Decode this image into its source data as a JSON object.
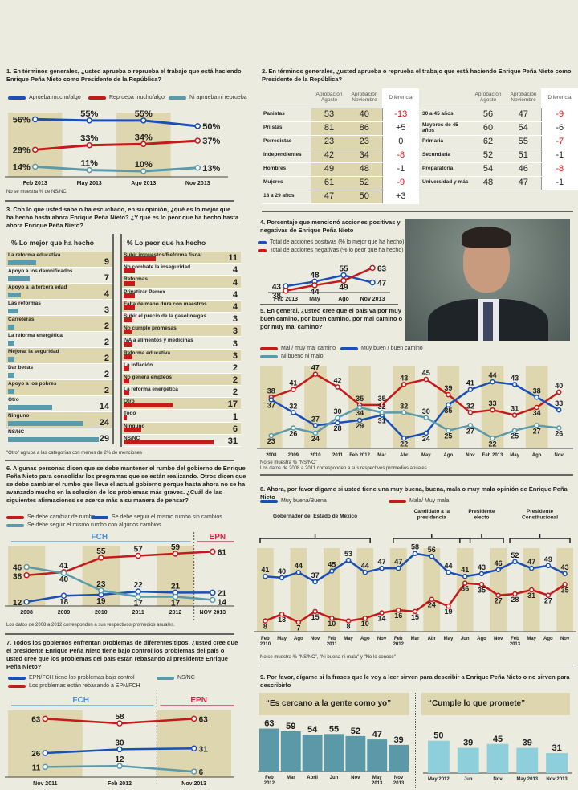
{
  "colors": {
    "blue": "#1a4fb5",
    "red": "#c41a1a",
    "teal": "#5b9aaa",
    "band": "#ddd6ae"
  },
  "q1": {
    "title": "1. En términos generales, ¿usted aprueba o reprueba el trabajo que está haciendo Enrique Peña Nieto como Presidente de la República?",
    "note": "No se muestra % de NS/NC"
  },
  "q2": {
    "title": "2. En términos generales, ¿usted aprueba o reprueba el trabajo que está haciendo Enrique Peña Nieto como Presidente de la República?"
  },
  "q3": {
    "title": "3. Con lo que usted sabe o ha escuchado, en su opinión, ¿qué es lo mejor que ha hecho hasta ahora Enrique Peña Nieto? ¿Y qué es lo peor que ha hecho hasta ahora Enrique Peña Nieto?",
    "note": "\"Otro\" agrupa a las categorías con menos de 2% de menciones"
  },
  "q4": {
    "title": "4. Porcentaje que mencionó acciones positivas y negativas de Enrique Peña Nieto"
  },
  "q5": {
    "title": "5. En general, ¿usted cree que el país va por muy buen camino, por buen camino, por mal camino o por muy mal camino?",
    "note1": "No se muestra % \"NS/NC\"",
    "note2": "Los datos de 2008 a 2011 corresponden a sus respectivos promedios anuales."
  },
  "q6": {
    "title": "6. Algunas personas dicen que se debe mantener el rumbo del gobierno de Enrique Peña Nieto para consolidar los programas que se están realizando. Otros dicen que se debe cambiar el rumbo que lleva el actual gobierno porque hasta ahora no se ha avanzado mucho en la solución de los problemas más graves. ¿Cuál de las siguientes afirmaciones se acerca más a su manera de pensar?",
    "note": "Los datos de 2008 a 2012 corresponden a sus respectivos promedios anuales.",
    "period1": "FCH",
    "period2": "EPN"
  },
  "q7": {
    "title": "7. Todos los gobiernos enfrentan problemas de diferentes tipos, ¿usted cree que el presidente Enrique Peña Nieto tiene bajo control los problemas del país o usted cree que los problemas del país están rebasando al presidente Enrique Peña Nieto?",
    "period1": "FCH",
    "period2": "EPN"
  },
  "q8": {
    "title": "8. Ahora, por favor dígame si usted tiene una muy buena, buena, mala o muy mala opinión de Enrique Peña Nieto",
    "note": "No se muestra % \"NS/NC\", \"Ni buena ni mala\" y \"No lo conoce\"",
    "periods": [
      "Gobernador del Estado de México",
      "Candidato a la presidencia",
      "Presidente electo",
      "Presidente Constitucional"
    ]
  },
  "q9": {
    "title": "9. Por favor, dígame si la frases que le voy a leer sirven para describir a Enrique Peña Nieto o no sirven para describirlo"
  },
  "chart_data": [
    {
      "id": "q1",
      "type": "line",
      "x": [
        "Feb 2013",
        "May 2013",
        "Ago 2013",
        "Nov 2013"
      ],
      "ylim": [
        5,
        62
      ],
      "suffix": "%",
      "series": [
        {
          "name": "Aprueba mucho/algo",
          "color": "blue",
          "values": [
            56,
            55,
            55,
            50
          ]
        },
        {
          "name": "Reprueba mucho/algo",
          "color": "red",
          "values": [
            29,
            33,
            34,
            37
          ]
        },
        {
          "name": "Ni aprueba ni reprueba",
          "color": "teal",
          "values": [
            14,
            11,
            10,
            13
          ]
        }
      ]
    },
    {
      "id": "q2",
      "type": "table",
      "columns": [
        "Aprobación Agosto",
        "Aprobación Noviembre",
        "Diferencia"
      ],
      "tables": [
        [
          [
            "Panistas",
            53,
            40,
            "-13"
          ],
          [
            "Priístas",
            81,
            86,
            "+5"
          ],
          [
            "Perredistas",
            23,
            23,
            "0"
          ],
          [
            "Independientes",
            42,
            34,
            "-8"
          ],
          [
            "Hombres",
            49,
            48,
            "-1"
          ],
          [
            "Mujeres",
            61,
            52,
            "-9"
          ],
          [
            "18 a 29 años",
            47,
            50,
            "+3"
          ]
        ],
        [
          [
            "30 a 45 años",
            56,
            47,
            "-9"
          ],
          [
            "Mayores de 45 años",
            60,
            54,
            "-6"
          ],
          [
            "Primaria",
            62,
            55,
            "-7"
          ],
          [
            "Secundaria",
            52,
            51,
            "-1"
          ],
          [
            "Preparatoria",
            54,
            46,
            "-8"
          ],
          [
            "Universidad y más",
            48,
            47,
            "-1"
          ]
        ]
      ]
    },
    {
      "id": "q3a",
      "type": "bar",
      "title": "% Lo mejor que ha hecho",
      "color": "teal",
      "categories": [
        "La reforma educativa",
        "Apoyo a los damnificados",
        "Apoyo a la tercera edad",
        "Las reformas",
        "Carreteras",
        "La reforma energética",
        "Mejorar la seguridad",
        "Dar becas",
        "Apoyo a los pobres",
        "Otro",
        "Ninguno",
        "NS/NC"
      ],
      "values": [
        9,
        7,
        4,
        3,
        2,
        2,
        2,
        2,
        2,
        14,
        24,
        29
      ]
    },
    {
      "id": "q3b",
      "type": "bar",
      "title": "% Lo peor que ha hecho",
      "color": "red",
      "categories": [
        "Subir impuestos/Reforma fiscal",
        "No combate la inseguridad",
        "Reformas",
        "Privatizar Pemex",
        "Falta de mano dura con maestros",
        "Subir el precio de la gasolina/gas",
        "No cumple promesas",
        "IVA a alimentos y medicinas",
        "Reforma educativa",
        "La inflación",
        "No genera empleos",
        "La reforma energética",
        "Otro",
        "Todo",
        "Ninguno",
        "NS/NC"
      ],
      "values": [
        11,
        4,
        4,
        4,
        4,
        3,
        3,
        3,
        3,
        2,
        2,
        2,
        17,
        1,
        6,
        31
      ]
    },
    {
      "id": "q4",
      "type": "line",
      "x": [
        "Feb 2013",
        "May",
        "Ago",
        "Nov 2013"
      ],
      "ylim": [
        36,
        66
      ],
      "series": [
        {
          "name": "Total de acciones positivas (% lo mejor que ha hecho)",
          "color": "blue",
          "values": [
            43,
            48,
            55,
            47
          ]
        },
        {
          "name": "Total de acciones negativas (% lo peor que ha hecho)",
          "color": "red",
          "values": [
            38,
            44,
            49,
            63
          ]
        }
      ]
    },
    {
      "id": "q5",
      "type": "line",
      "x": [
        "2008",
        "2009",
        "2010",
        "2011",
        "Feb 2012",
        "Mar",
        "Abr",
        "May",
        "Ago",
        "Nov",
        "Feb 2013",
        "May",
        "Ago",
        "Nov"
      ],
      "ylim": [
        18,
        50
      ],
      "series": [
        {
          "name": "Mal / muy mal camino",
          "color": "red",
          "values": [
            38,
            41,
            47,
            42,
            35,
            35,
            43,
            45,
            39,
            32,
            33,
            31,
            34,
            40
          ]
        },
        {
          "name": "Muy buen / buen camino",
          "color": "blue",
          "values": [
            37,
            32,
            27,
            28,
            29,
            31,
            22,
            24,
            35,
            41,
            44,
            43,
            38,
            33
          ]
        },
        {
          "name": "Ni bueno ni malo",
          "color": "teal",
          "values": [
            23,
            26,
            24,
            30,
            34,
            32,
            32,
            30,
            25,
            27,
            22,
            25,
            27,
            26
          ]
        }
      ]
    },
    {
      "id": "q6",
      "type": "line",
      "x": [
        "2008",
        "2009",
        "2010",
        "2011",
        "2012",
        "NOV 2013"
      ],
      "ylim": [
        8,
        66
      ],
      "series": [
        {
          "name": "Se debe cambiar de rumbo",
          "color": "red",
          "values": [
            38,
            41,
            55,
            57,
            59,
            61
          ]
        },
        {
          "name": "Se debe seguir el mismo rumbo sin cambios",
          "color": "blue",
          "values": [
            12,
            18,
            19,
            22,
            21,
            21
          ]
        },
        {
          "name": "Se debe seguir el mismo rumbo con algunos cambios",
          "color": "teal",
          "values": [
            46,
            40,
            23,
            17,
            17,
            14
          ]
        }
      ]
    },
    {
      "id": "q7",
      "type": "line",
      "x": [
        "Nov 2011",
        "Feb 2012",
        "Nov 2013"
      ],
      "ylim": [
        0,
        72
      ],
      "series": [
        {
          "name": "EPN/FCH tiene los problemas bajo control",
          "color": "blue",
          "values": [
            26,
            30,
            31
          ]
        },
        {
          "name": "Los problemas están rebasando a EPN/FCH",
          "color": "red",
          "values": [
            63,
            58,
            63
          ]
        },
        {
          "name": "NS/NC",
          "color": "teal",
          "values": [
            11,
            12,
            6
          ]
        }
      ]
    },
    {
      "id": "q8",
      "type": "line",
      "x": [
        "Feb 2010",
        "May",
        "Ago",
        "Nov",
        "Feb 2011",
        "May",
        "Ago",
        "Nov",
        "Feb 2012",
        "Mar",
        "Abr",
        "May",
        "Jun",
        "Ago",
        "Nov",
        "Feb 2013",
        "May",
        "Ago",
        "Nov"
      ],
      "ylim": [
        0,
        62
      ],
      "series": [
        {
          "name": "Muy buena/Buena",
          "color": "blue",
          "values": [
            41,
            40,
            44,
            37,
            45,
            53,
            44,
            47,
            47,
            58,
            56,
            44,
            41,
            43,
            46,
            52,
            47,
            49,
            43
          ]
        },
        {
          "name": "Mala/ Muy mala",
          "color": "red",
          "values": [
            8,
            13,
            7,
            15,
            10,
            8,
            10,
            14,
            16,
            15,
            24,
            19,
            36,
            35,
            27,
            28,
            31,
            27,
            35
          ]
        }
      ]
    },
    {
      "id": "q9a",
      "type": "bar",
      "title": "“Es cercano a la gente como yo”",
      "color": "#5b98a8",
      "categories": [
        "Feb 2012",
        "Mar",
        "Abril",
        "Jun",
        "Nov",
        "May 2013",
        "Nov 2013"
      ],
      "values": [
        63,
        59,
        54,
        55,
        52,
        47,
        39
      ]
    },
    {
      "id": "q9b",
      "type": "bar",
      "title": "“Cumple lo que promete”",
      "color": "#8ecfdc",
      "categories": [
        "May 2012",
        "Jun",
        "Nov",
        "May 2013",
        "Nov 2013"
      ],
      "values": [
        50,
        39,
        45,
        39,
        31
      ]
    }
  ]
}
